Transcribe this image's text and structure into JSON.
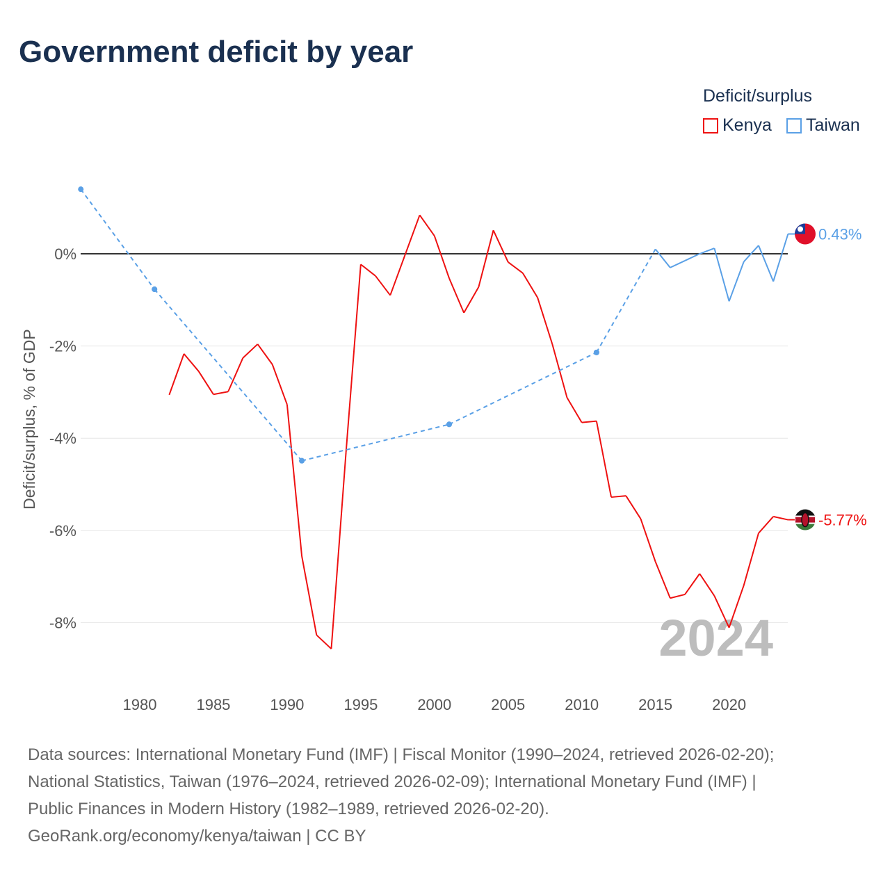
{
  "title": "Government deficit by year",
  "legend": {
    "title": "Deficit/surplus",
    "items": [
      {
        "label": "Kenya",
        "color": "#ee1111"
      },
      {
        "label": "Taiwan",
        "color": "#5aa0e6"
      }
    ]
  },
  "footer": {
    "lines": [
      "Data sources: International Monetary Fund (IMF) | Fiscal Monitor (1990–2024, retrieved 2026-02-20);",
      "National Statistics, Taiwan (1976–2024, retrieved 2026-02-09); International Monetary Fund (IMF) |",
      "Public Finances in Modern History (1982–1989, retrieved 2026-02-20).",
      "GeoRank.org/economy/kenya/taiwan | CC BY"
    ]
  },
  "chart_data": {
    "type": "line",
    "title": "Government deficit by year",
    "xlabel": "",
    "ylabel": "Deficit/surplus, % of GDP",
    "xlim": [
      1976,
      2024
    ],
    "ylim": [
      -9.5,
      1.8
    ],
    "x_ticks": [
      1980,
      1985,
      1990,
      1995,
      2000,
      2005,
      2010,
      2015,
      2020
    ],
    "y_ticks": [
      0,
      -2,
      -4,
      -6,
      -8
    ],
    "y_tick_labels": [
      "0%",
      "-2%",
      "-4%",
      "-6%",
      "-8%"
    ],
    "year_watermark": "2024",
    "series": [
      {
        "name": "Kenya",
        "color": "#ee1111",
        "end_label": "-5.77%",
        "x": [
          1982,
          1983,
          1984,
          1985,
          1986,
          1987,
          1988,
          1989,
          1990,
          1991,
          1992,
          1993,
          1994,
          1995,
          1996,
          1997,
          1998,
          1999,
          2000,
          2001,
          2002,
          2003,
          2004,
          2005,
          2006,
          2007,
          2008,
          2009,
          2010,
          2011,
          2012,
          2013,
          2014,
          2015,
          2016,
          2017,
          2018,
          2019,
          2020,
          2021,
          2022,
          2023,
          2024
        ],
        "y": [
          -3.06,
          -2.17,
          -2.55,
          -3.05,
          -2.99,
          -2.26,
          -1.96,
          -2.4,
          -3.27,
          -6.56,
          -8.27,
          -8.57,
          -4.3,
          -0.23,
          -0.48,
          -0.9,
          -0.03,
          0.84,
          0.39,
          -0.53,
          -1.28,
          -0.72,
          0.51,
          -0.18,
          -0.42,
          -0.95,
          -1.96,
          -3.12,
          -3.66,
          -3.63,
          -5.28,
          -5.25,
          -5.75,
          -6.68,
          -7.47,
          -7.39,
          -6.94,
          -7.42,
          -8.11,
          -7.19,
          -6.06,
          -5.7,
          -5.77
        ]
      },
      {
        "name": "Taiwan",
        "color": "#5aa0e6",
        "end_label": "0.43%",
        "x": [
          1976,
          1981,
          1991,
          2001,
          2011,
          2015,
          2016,
          2017,
          2018,
          2019,
          2020,
          2021,
          2022,
          2023,
          2024
        ],
        "y": [
          1.4,
          -0.77,
          -4.49,
          -3.7,
          -2.14,
          0.1,
          -0.3,
          -0.15,
          0.0,
          0.12,
          -1.03,
          -0.17,
          0.18,
          -0.6,
          0.43
        ]
      }
    ]
  }
}
